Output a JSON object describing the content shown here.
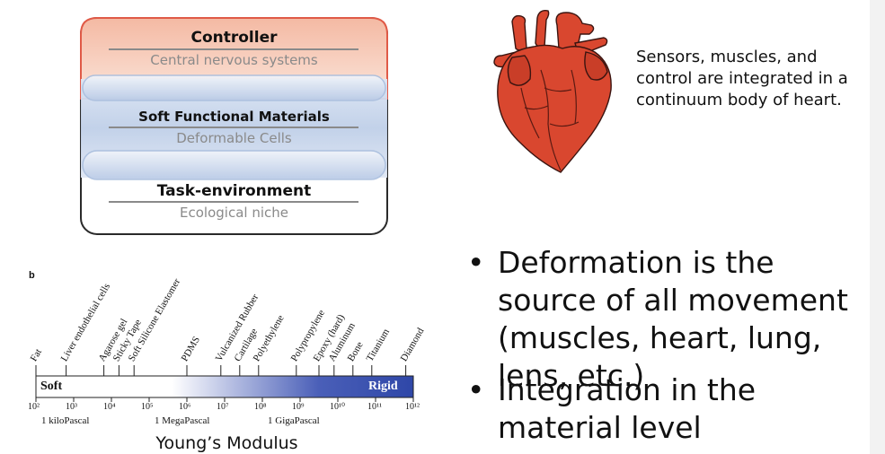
{
  "layers": {
    "controller_title": "Controller",
    "controller_sub": "Central nervous systems",
    "materials_title": "Soft Functional Materials",
    "materials_sub": "Deformable Cells",
    "task_title": "Task-environment",
    "task_sub": "Ecological niche",
    "colors": {
      "controller_fill": "#f6c9b4",
      "controller_border": "#e05a47",
      "materials_fill": "#c6d4ea",
      "materials_border": "#a9bede",
      "task_border": "#2a2a2a"
    }
  },
  "heart": {
    "icon": "anatomical-heart-icon",
    "note": "Sensors, muscles, and control are integrated in a continuum body of heart.",
    "color": "#d9472f"
  },
  "bullets": [
    "Deformation is the source of all movement (muscles, heart, lung, lens, etc.)",
    "Integration in the material level"
  ],
  "chart_data": {
    "type": "table",
    "panel_label": "b",
    "axis_title": "Young’s Modulus",
    "scale": "log10",
    "range_pa": [
      100,
      1000000000000
    ],
    "ticks": [
      {
        "exp": 2,
        "label": "10²"
      },
      {
        "exp": 3,
        "label": "10³"
      },
      {
        "exp": 4,
        "label": "10⁴"
      },
      {
        "exp": 5,
        "label": "10⁵"
      },
      {
        "exp": 6,
        "label": "10⁶"
      },
      {
        "exp": 7,
        "label": "10⁷"
      },
      {
        "exp": 8,
        "label": "10⁸"
      },
      {
        "exp": 9,
        "label": "10⁹"
      },
      {
        "exp": 10,
        "label": "10¹⁰"
      },
      {
        "exp": 11,
        "label": "10¹¹"
      },
      {
        "exp": 12,
        "label": "10¹²"
      }
    ],
    "unit_labels": [
      {
        "exp": 3,
        "label": "1 kiloPascal"
      },
      {
        "exp": 6,
        "label": "1 MegaPascal"
      },
      {
        "exp": 9,
        "label": "1 GigaPascal"
      }
    ],
    "bar_left_label": "Soft",
    "bar_right_label": "Rigid",
    "gradient_start_exp": 5.6,
    "gradient_colors": [
      "#ffffff",
      "#4a5fb8",
      "#2f47a8"
    ],
    "materials": [
      {
        "name": "Fat",
        "exp": 2.0
      },
      {
        "name": "Liver endothelial cells",
        "exp": 2.8
      },
      {
        "name": "Agarose gel",
        "exp": 3.8
      },
      {
        "name": "Sticky Tape",
        "exp": 4.2
      },
      {
        "name": "Soft Silicone Elastomer",
        "exp": 4.6
      },
      {
        "name": "PDMS",
        "exp": 6.0
      },
      {
        "name": "Vulcanized Rubber",
        "exp": 6.9
      },
      {
        "name": "Cartilage",
        "exp": 7.4
      },
      {
        "name": "Polyethylene",
        "exp": 7.9
      },
      {
        "name": "Polypropylene",
        "exp": 8.9
      },
      {
        "name": "Epoxy (hard)",
        "exp": 9.5
      },
      {
        "name": "Aluminum",
        "exp": 9.9
      },
      {
        "name": "Bone",
        "exp": 10.4
      },
      {
        "name": "Titanium",
        "exp": 10.9
      },
      {
        "name": "Diamond",
        "exp": 11.8
      }
    ]
  }
}
